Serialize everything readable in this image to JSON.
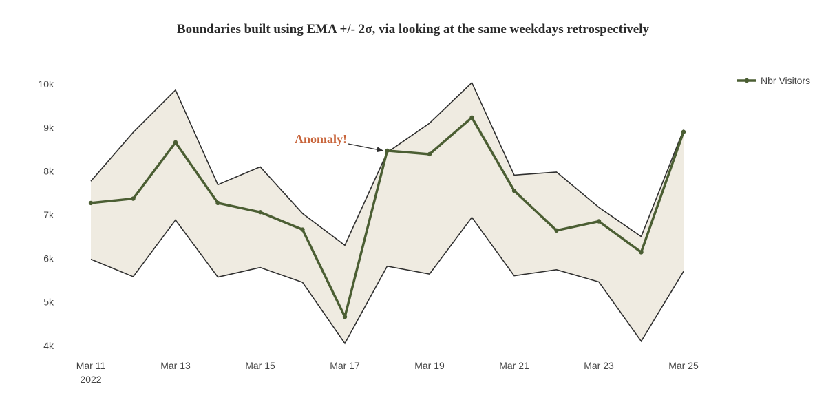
{
  "chart_data": {
    "type": "line",
    "title": "Boundaries built using EMA +/- 2σ, via looking at the same weekdays retrospectively",
    "xlabel": "",
    "ylabel": "",
    "x": [
      "2022-03-11",
      "2022-03-12",
      "2022-03-13",
      "2022-03-14",
      "2022-03-15",
      "2022-03-16",
      "2022-03-17",
      "2022-03-18",
      "2022-03-19",
      "2022-03-20",
      "2022-03-21",
      "2022-03-22",
      "2022-03-23",
      "2022-03-24",
      "2022-03-25"
    ],
    "x_ticks": [
      {
        "date": "2022-03-11",
        "label": "Mar 11",
        "sublabel": "2022"
      },
      {
        "date": "2022-03-13",
        "label": "Mar 13"
      },
      {
        "date": "2022-03-15",
        "label": "Mar 15"
      },
      {
        "date": "2022-03-17",
        "label": "Mar 17"
      },
      {
        "date": "2022-03-19",
        "label": "Mar 19"
      },
      {
        "date": "2022-03-21",
        "label": "Mar 21"
      },
      {
        "date": "2022-03-23",
        "label": "Mar 23"
      },
      {
        "date": "2022-03-25",
        "label": "Mar 25"
      }
    ],
    "y_ticks": [
      {
        "value": 4000,
        "label": "4k"
      },
      {
        "value": 5000,
        "label": "5k"
      },
      {
        "value": 6000,
        "label": "6k"
      },
      {
        "value": 7000,
        "label": "7k"
      },
      {
        "value": 8000,
        "label": "8k"
      },
      {
        "value": 9000,
        "label": "9k"
      },
      {
        "value": 10000,
        "label": "10k"
      }
    ],
    "ylim": [
      4000,
      10000
    ],
    "grid": false,
    "legend_position": "top-right",
    "series": [
      {
        "name": "Nbr Visitors",
        "color": "#4b5e33",
        "values": [
          7270,
          7370,
          8660,
          7270,
          7060,
          6660,
          4660,
          8470,
          8390,
          9230,
          7550,
          6640,
          6850,
          6140,
          8900
        ]
      }
    ],
    "bands": {
      "upper": [
        7770,
        8890,
        9860,
        7690,
        8100,
        7030,
        6300,
        8430,
        9100,
        10030,
        7910,
        7980,
        7170,
        6500,
        8950
      ],
      "lower": [
        5980,
        5580,
        6880,
        5570,
        5790,
        5450,
        4050,
        5820,
        5640,
        6940,
        5600,
        5740,
        5460,
        4100,
        5700
      ],
      "fill_color": "#efebe1",
      "line_color": "#2f2f2f"
    },
    "annotations": [
      {
        "text": "Anomaly!",
        "date": "2022-03-18",
        "value": 8470,
        "color": "#c8643a"
      }
    ]
  }
}
